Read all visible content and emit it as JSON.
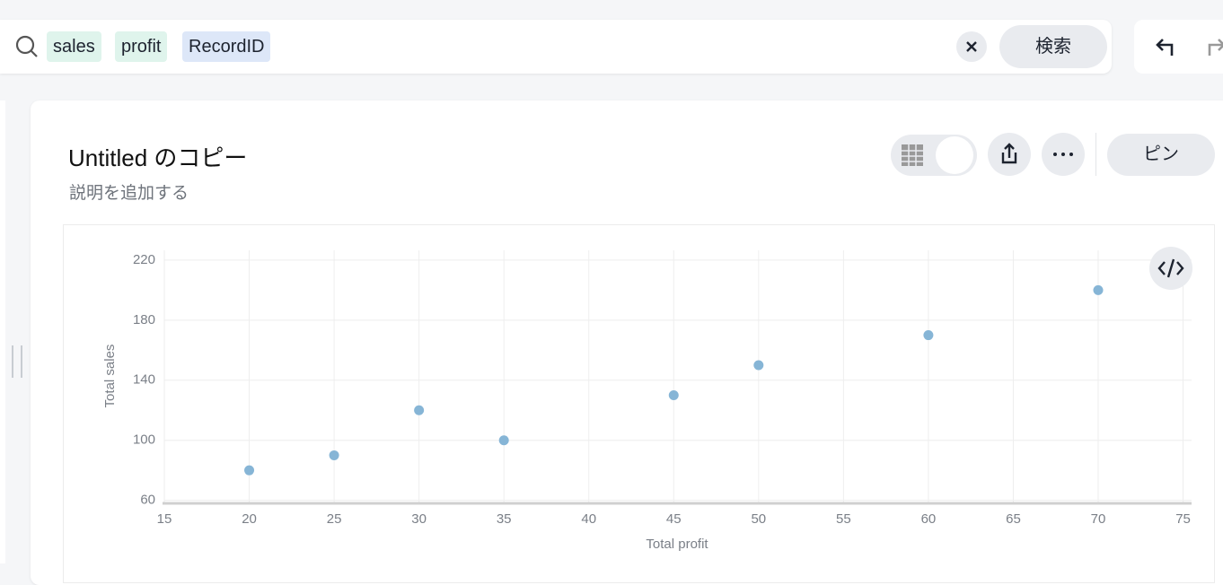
{
  "search": {
    "tokens": [
      "sales",
      "profit",
      "RecordID"
    ],
    "button": "検索"
  },
  "header": {
    "title": "Untitled のコピー",
    "description": "説明を追加する",
    "pin": "ピン"
  },
  "chart_data": {
    "type": "scatter",
    "x_label": "Total profit",
    "y_label": "Total sales",
    "x": [
      20,
      25,
      30,
      35,
      45,
      50,
      60,
      70
    ],
    "values": [
      80,
      90,
      120,
      100,
      130,
      150,
      170,
      200
    ],
    "color": "#86b5d6",
    "xlim": [
      15,
      75.5
    ],
    "ylim": [
      58,
      226.5
    ],
    "xticks": [
      15,
      20,
      25,
      30,
      35,
      40,
      45,
      50,
      55,
      60,
      65,
      70,
      75
    ],
    "yticks": [
      60,
      100,
      140,
      180,
      220
    ],
    "grid": true
  }
}
